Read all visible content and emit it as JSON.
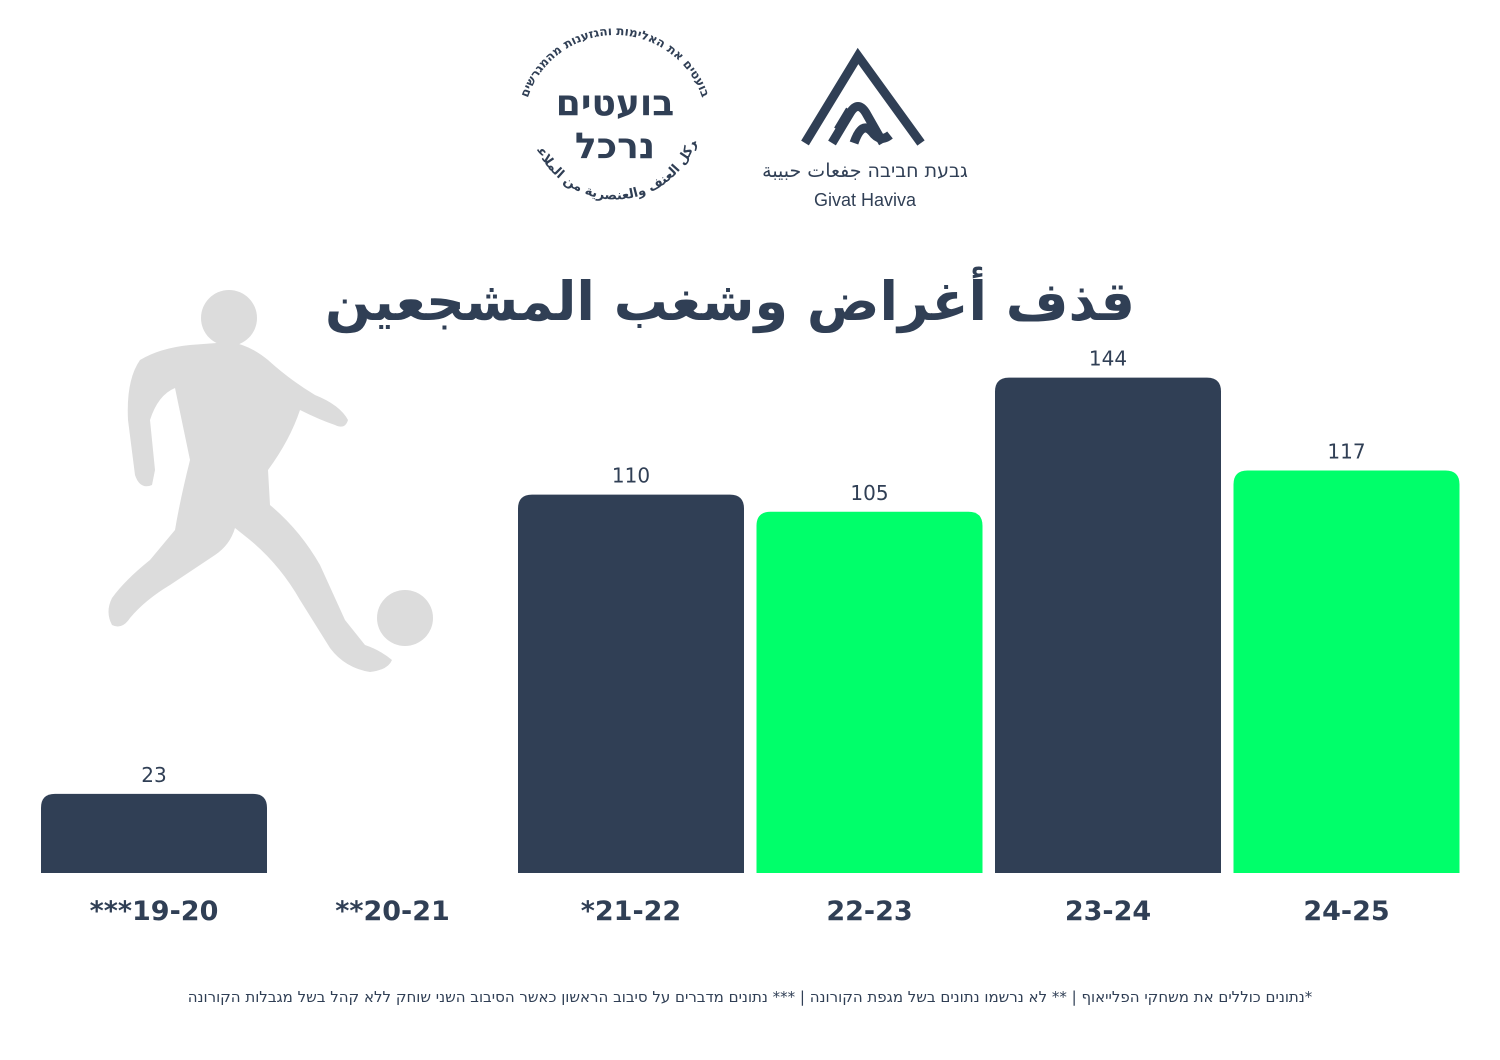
{
  "header": {
    "seal": {
      "title_line1": "בועטים",
      "title_line2": "נרכל",
      "ring_hebrew": "בועטים את האלימות והגזענות מהמגרשים",
      "ring_arabic": "نركل العنف والعنصرية من الملاعب"
    },
    "givat_haviva": {
      "name_hebrew_arabic": "גבעת חביבה  جفعات حبيبة",
      "name_english": "Givat Haviva"
    }
  },
  "chart_data": {
    "type": "bar",
    "title": "قذف أغراض وشغب المشجعين",
    "categories": [
      "***19-20",
      "**20-21",
      "*21-22",
      "22-23",
      "23-24",
      "24-25"
    ],
    "values": [
      23,
      null,
      110,
      105,
      144,
      117
    ],
    "value_labels": [
      "23",
      "",
      "110",
      "105",
      "144",
      "117"
    ],
    "bar_colors": [
      "#303f55",
      "#303f55",
      "#303f55",
      "#00ff6a",
      "#303f55",
      "#00ff6a"
    ],
    "xlabel": "",
    "ylabel": "",
    "grid": false,
    "legend": "none"
  },
  "footnote": "*נתונים כוללים את משחקי הפלייאוף  |  ** לא נרשמו נתונים בשל מגפת הקורונה | *** נתונים מדברים על סיבוב הראשון כאשר הסיבוב השני שוחק ללא קהל בשל מגבלות הקורונה",
  "colors": {
    "navy": "#303f55",
    "green": "#00ff6a",
    "silhouette": "#dcdcdc"
  },
  "icons": [
    "football-player-silhouette-icon",
    "soccer-ball-icon"
  ]
}
